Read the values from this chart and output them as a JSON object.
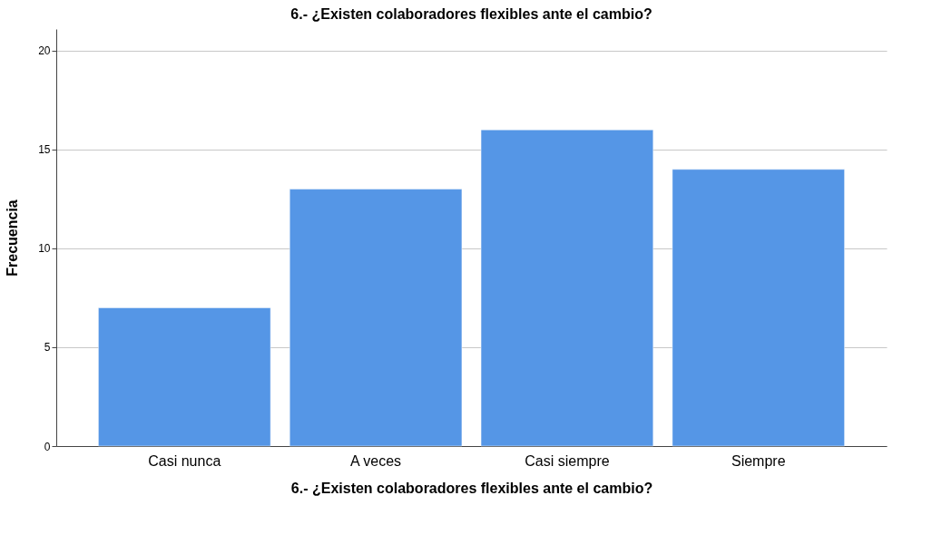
{
  "chart_data": {
    "type": "bar",
    "title": "6.- ¿Existen colaboradores flexibles ante el cambio?",
    "xlabel": "6.- ¿Existen colaboradores flexibles ante el cambio?",
    "ylabel": "Frecuencia",
    "categories": [
      "Casi nunca",
      "A veces",
      "Casi siempre",
      "Siempre"
    ],
    "values": [
      7,
      13,
      16,
      14
    ],
    "color": "#5596e6",
    "ylim": [
      0,
      21.1
    ],
    "yticks": [
      0,
      5,
      10,
      15,
      20
    ],
    "grid": "y"
  }
}
